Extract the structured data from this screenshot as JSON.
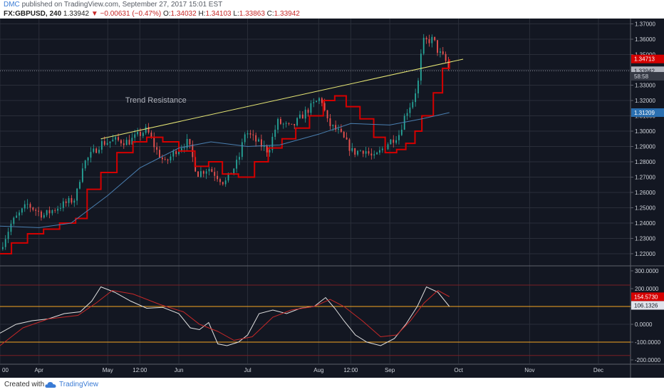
{
  "header": {
    "user": "DMC",
    "publish_line": "published on TradingView.com, September 27, 2017 15:01 EST",
    "symbol": "FX:GBPUSD, 240",
    "last": "1.33942",
    "change_arrow": "▼",
    "change": "−0.00631 (−0.47%)",
    "o_label": "O:",
    "open": "1.34032",
    "h_label": "H:",
    "high": "1.34103",
    "l_label": "L:",
    "low": "1.33863",
    "c_label": "C:",
    "close": "1.33942"
  },
  "footer": {
    "created_with": "Created with",
    "brand": "TradingView",
    "logo_icon": "tradingview-cloud-icon"
  },
  "colors": {
    "background": "#131722",
    "grid": "#2a2e39",
    "candle_up": "#26a69a",
    "candle_down": "#ef5350",
    "red_line": "#d50000",
    "ma_line": "#4a7fb0",
    "trendline": "#e6e675",
    "osc_white": "#e0e0e0",
    "osc_red": "#c62828",
    "level_orange": "#f5a623",
    "level_red": "#7a1f24"
  },
  "chart_data": [
    {
      "type": "candlestick",
      "pane": "price",
      "symbol": "FX:GBPUSD",
      "timeframe": "240",
      "x_labels": [
        "00",
        "Apr",
        "May",
        "12:00",
        "Jun",
        "Jul",
        "Aug",
        "12:00",
        "Sep",
        "Oct",
        "Nov",
        "Dec"
      ],
      "x_label_dates": [
        "2017-03-15",
        "2017-04-01",
        "2017-05-01",
        "2017-05-15",
        "2017-06-01",
        "2017-07-01",
        "2017-08-01",
        "2017-08-15",
        "2017-09-01",
        "2017-10-01",
        "2017-11-01",
        "2017-12-01"
      ],
      "x_range": [
        "2017-03-15",
        "2017-12-15"
      ],
      "ylim": [
        1.213,
        1.3735
      ],
      "y_ticks": [
        "1.37000",
        "1.36000",
        "1.35000",
        "1.34000",
        "1.33000",
        "1.32000",
        "1.31000",
        "1.30000",
        "1.29000",
        "1.28000",
        "1.27000",
        "1.26000",
        "1.25000",
        "1.24000",
        "1.23000",
        "1.22000"
      ],
      "close_path": {
        "dates": [
          "2017-03-15",
          "2017-03-20",
          "2017-03-27",
          "2017-04-03",
          "2017-04-10",
          "2017-04-17",
          "2017-04-20",
          "2017-04-24",
          "2017-04-28",
          "2017-05-04",
          "2017-05-10",
          "2017-05-18",
          "2017-05-22",
          "2017-05-26",
          "2017-05-31",
          "2017-06-05",
          "2017-06-09",
          "2017-06-14",
          "2017-06-21",
          "2017-06-27",
          "2017-06-30",
          "2017-07-05",
          "2017-07-10",
          "2017-07-14",
          "2017-07-20",
          "2017-07-26",
          "2017-08-02",
          "2017-08-05",
          "2017-08-10",
          "2017-08-16",
          "2017-08-21",
          "2017-08-25",
          "2017-08-31",
          "2017-09-05",
          "2017-09-08",
          "2017-09-11",
          "2017-09-14",
          "2017-09-15",
          "2017-09-20",
          "2017-09-22",
          "2017-09-25",
          "2017-09-27"
        ],
        "values": [
          1.223,
          1.24,
          1.252,
          1.245,
          1.251,
          1.256,
          1.278,
          1.285,
          1.292,
          1.294,
          1.293,
          1.301,
          1.288,
          1.279,
          1.288,
          1.293,
          1.272,
          1.276,
          1.266,
          1.281,
          1.3,
          1.293,
          1.287,
          1.306,
          1.302,
          1.312,
          1.322,
          1.305,
          1.299,
          1.286,
          1.288,
          1.282,
          1.292,
          1.298,
          1.312,
          1.32,
          1.335,
          1.358,
          1.36,
          1.352,
          1.347,
          1.3394
        ]
      },
      "series": [
        {
          "name": "",
          "kind": "red-stepped-line",
          "dates": [
            "2017-03-15",
            "2017-03-20",
            "2017-03-27",
            "2017-04-03",
            "2017-04-10",
            "2017-04-17",
            "2017-04-22",
            "2017-04-28",
            "2017-05-05",
            "2017-05-12",
            "2017-05-18",
            "2017-05-25",
            "2017-06-01",
            "2017-06-08",
            "2017-06-14",
            "2017-06-20",
            "2017-06-27",
            "2017-07-04",
            "2017-07-10",
            "2017-07-16",
            "2017-07-22",
            "2017-07-28",
            "2017-08-03",
            "2017-08-08",
            "2017-08-13",
            "2017-08-19",
            "2017-08-25",
            "2017-08-30",
            "2017-09-04",
            "2017-09-08",
            "2017-09-12",
            "2017-09-15",
            "2017-09-20",
            "2017-09-24",
            "2017-09-27"
          ],
          "values": [
            1.22,
            1.227,
            1.233,
            1.236,
            1.24,
            1.243,
            1.262,
            1.273,
            1.286,
            1.293,
            1.296,
            1.293,
            1.287,
            1.277,
            1.28,
            1.272,
            1.27,
            1.28,
            1.289,
            1.295,
            1.302,
            1.31,
            1.32,
            1.323,
            1.316,
            1.308,
            1.296,
            1.286,
            1.288,
            1.292,
            1.3,
            1.31,
            1.325,
            1.341,
            1.347
          ]
        },
        {
          "name": "",
          "kind": "moving-average",
          "dates": [
            "2017-03-15",
            "2017-04-01",
            "2017-04-15",
            "2017-05-01",
            "2017-05-15",
            "2017-06-01",
            "2017-06-15",
            "2017-07-01",
            "2017-07-15",
            "2017-08-01",
            "2017-08-15",
            "2017-09-01",
            "2017-09-15",
            "2017-09-27"
          ],
          "values": [
            1.238,
            1.237,
            1.24,
            1.258,
            1.276,
            1.289,
            1.293,
            1.29,
            1.291,
            1.298,
            1.305,
            1.304,
            1.308,
            1.3121
          ]
        },
        {
          "name": "Trend Resistance",
          "kind": "trendline",
          "dates": [
            "2017-04-28",
            "2017-10-03"
          ],
          "values": [
            1.295,
            1.347
          ]
        }
      ],
      "annotations": [
        {
          "text": "Trend Resistance",
          "date": "2017-05-22",
          "value": 1.3185
        }
      ],
      "price_tags": [
        {
          "label": "1.37000",
          "value": 1.37,
          "style": "tick"
        },
        {
          "label": "1.34713",
          "value": 1.3471,
          "style": "red"
        },
        {
          "label": "1.33942",
          "value": 1.3394,
          "style": "grey"
        },
        {
          "label": "58:58",
          "value": 1.3358,
          "style": "dark"
        },
        {
          "label": "1.31209",
          "value": 1.3121,
          "style": "blue"
        }
      ],
      "crosshair_value": 1.3394,
      "grid": true
    },
    {
      "type": "line",
      "pane": "oscillator",
      "ylim": [
        -220,
        320
      ],
      "y_ticks": [
        "300.0000",
        "200.0000",
        "100.0000",
        "0.0000",
        "-100.0000",
        "-200.0000"
      ],
      "levels": [
        {
          "value": 220,
          "color": "level_red"
        },
        {
          "value": 100,
          "color": "level_orange"
        },
        {
          "value": 0,
          "color": "grid"
        },
        {
          "value": -100,
          "color": "level_orange"
        },
        {
          "value": -175,
          "color": "level_red"
        }
      ],
      "series": [
        {
          "name": "",
          "kind": "oscillator-white",
          "dates": [
            "2017-03-15",
            "2017-03-22",
            "2017-03-29",
            "2017-04-05",
            "2017-04-12",
            "2017-04-19",
            "2017-04-24",
            "2017-04-28",
            "2017-05-04",
            "2017-05-11",
            "2017-05-18",
            "2017-05-25",
            "2017-06-01",
            "2017-06-06",
            "2017-06-10",
            "2017-06-14",
            "2017-06-18",
            "2017-06-22",
            "2017-06-27",
            "2017-07-01",
            "2017-07-06",
            "2017-07-12",
            "2017-07-18",
            "2017-07-24",
            "2017-07-30",
            "2017-08-04",
            "2017-08-08",
            "2017-08-12",
            "2017-08-17",
            "2017-08-22",
            "2017-08-28",
            "2017-09-03",
            "2017-09-08",
            "2017-09-13",
            "2017-09-17",
            "2017-09-22",
            "2017-09-27"
          ],
          "values": [
            -50,
            0,
            20,
            30,
            60,
            70,
            130,
            210,
            180,
            130,
            90,
            95,
            60,
            -20,
            -30,
            10,
            -110,
            -120,
            -100,
            -60,
            60,
            80,
            60,
            90,
            100,
            150,
            90,
            20,
            -60,
            -100,
            -120,
            -80,
            0,
            100,
            210,
            180,
            100
          ]
        },
        {
          "name": "",
          "kind": "oscillator-red",
          "dates": [
            "2017-03-15",
            "2017-03-25",
            "2017-04-05",
            "2017-04-18",
            "2017-04-26",
            "2017-05-03",
            "2017-05-12",
            "2017-05-24",
            "2017-06-03",
            "2017-06-10",
            "2017-06-18",
            "2017-06-25",
            "2017-07-03",
            "2017-07-12",
            "2017-07-20",
            "2017-07-30",
            "2017-08-06",
            "2017-08-12",
            "2017-08-20",
            "2017-08-28",
            "2017-09-04",
            "2017-09-10",
            "2017-09-16",
            "2017-09-22",
            "2017-09-27"
          ],
          "values": [
            -120,
            -20,
            30,
            50,
            120,
            190,
            170,
            110,
            70,
            0,
            -40,
            -90,
            -70,
            40,
            80,
            100,
            140,
            100,
            20,
            -70,
            -60,
            20,
            120,
            190,
            155
          ]
        }
      ],
      "price_tags": [
        {
          "label": "154.5730",
          "value": 154.573,
          "style": "red"
        },
        {
          "label": "106.1326",
          "value": 106.1326,
          "style": "light"
        }
      ],
      "grid": true
    }
  ]
}
